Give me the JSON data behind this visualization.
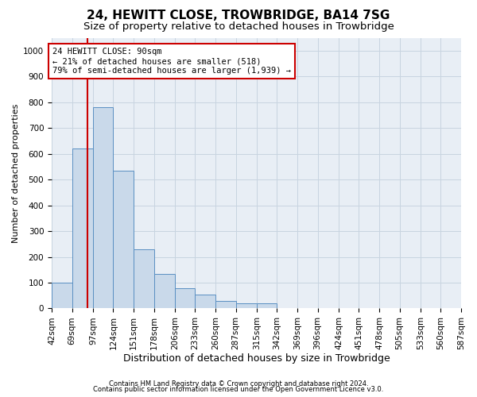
{
  "title1": "24, HEWITT CLOSE, TROWBRIDGE, BA14 7SG",
  "title2": "Size of property relative to detached houses in Trowbridge",
  "xlabel": "Distribution of detached houses by size in Trowbridge",
  "ylabel": "Number of detached properties",
  "bin_edges": [
    42,
    69,
    97,
    124,
    151,
    178,
    206,
    233,
    260,
    287,
    315,
    342,
    369,
    396,
    424,
    451,
    478,
    505,
    533,
    560,
    587
  ],
  "bar_heights": [
    100,
    620,
    780,
    535,
    230,
    135,
    80,
    55,
    30,
    20,
    20,
    0,
    0,
    0,
    0,
    0,
    0,
    0,
    0,
    0
  ],
  "bar_facecolor": "#c9d9ea",
  "bar_edgecolor": "#5a8fc2",
  "property_line_x": 90,
  "property_line_color": "#cc0000",
  "annotation_line1": "24 HEWITT CLOSE: 90sqm",
  "annotation_line2": "← 21% of detached houses are smaller (518)",
  "annotation_line3": "79% of semi-detached houses are larger (1,939) →",
  "annotation_box_color": "#cc0000",
  "annotation_facecolor": "white",
  "ylim": [
    0,
    1050
  ],
  "yticks": [
    0,
    100,
    200,
    300,
    400,
    500,
    600,
    700,
    800,
    900,
    1000
  ],
  "grid_color": "#c8d4e0",
  "background_color": "#e8eef5",
  "footer_line1": "Contains HM Land Registry data © Crown copyright and database right 2024.",
  "footer_line2": "Contains public sector information licensed under the Open Government Licence v3.0.",
  "title1_fontsize": 11,
  "title2_fontsize": 9.5,
  "xlabel_fontsize": 9,
  "ylabel_fontsize": 8,
  "tick_fontsize": 7.5,
  "annotation_fontsize": 7.5,
  "footer_fontsize": 6
}
